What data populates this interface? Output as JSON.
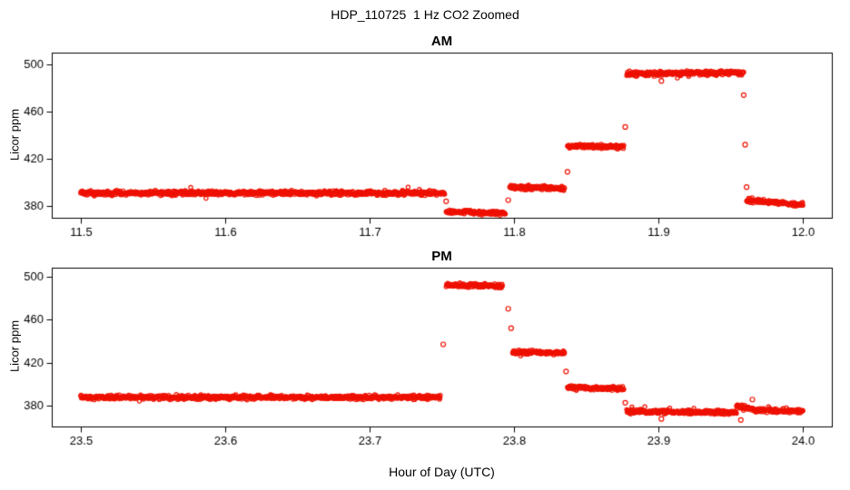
{
  "title": "HDP_110725  1 Hz CO2 Zoomed",
  "xlabel": "Hour of Day (UTC)",
  "point_color": "#ee1100",
  "axis_color": "#000000",
  "chart_data": [
    {
      "type": "scatter",
      "title": "AM",
      "ylabel": "Licor ppm",
      "xlim": [
        11.48,
        12.02
      ],
      "ylim": [
        370,
        510
      ],
      "xticks": [
        11.5,
        11.6,
        11.7,
        11.8,
        11.9,
        12.0
      ],
      "xtick_labels": [
        "11.5",
        "11.6",
        "11.7",
        "11.8",
        "11.9",
        "12.0"
      ],
      "yticks": [
        380,
        420,
        460,
        500
      ],
      "ytick_labels": [
        "380",
        "420",
        "460",
        "500"
      ],
      "sample_rate_hz": 1,
      "segments": [
        {
          "x_start": 11.5,
          "x_end": 11.752,
          "y_start": 391,
          "y_end": 391,
          "noise": 1.3
        },
        {
          "x_start": 11.753,
          "x_end": 11.794,
          "y_start": 375,
          "y_end": 374,
          "noise": 1.2
        },
        {
          "x_start": 11.797,
          "x_end": 11.835,
          "y_start": 396,
          "y_end": 395,
          "noise": 1.2
        },
        {
          "x_start": 11.837,
          "x_end": 11.876,
          "y_start": 431,
          "y_end": 430,
          "noise": 1.2
        },
        {
          "x_start": 11.878,
          "x_end": 11.959,
          "y_start": 492,
          "y_end": 493,
          "noise": 1.3
        },
        {
          "x_start": 11.961,
          "x_end": 12.0,
          "y_start": 385,
          "y_end": 381,
          "noise": 1.2
        }
      ],
      "outliers": [
        [
          11.753,
          384
        ],
        [
          11.796,
          385
        ],
        [
          11.837,
          409
        ],
        [
          11.877,
          447
        ],
        [
          11.902,
          486
        ],
        [
          11.959,
          474
        ],
        [
          11.96,
          432
        ],
        [
          11.961,
          396
        ]
      ]
    },
    {
      "type": "scatter",
      "title": "PM",
      "ylabel": "Licor ppm",
      "xlim": [
        23.48,
        24.02
      ],
      "ylim": [
        361,
        508
      ],
      "xticks": [
        23.5,
        23.6,
        23.7,
        23.8,
        23.9,
        24.0
      ],
      "xtick_labels": [
        "23.5",
        "23.6",
        "23.7",
        "23.8",
        "23.9",
        "24.0"
      ],
      "yticks": [
        380,
        420,
        460,
        500
      ],
      "ytick_labels": [
        "380",
        "420",
        "460",
        "500"
      ],
      "sample_rate_hz": 1,
      "segments": [
        {
          "x_start": 23.5,
          "x_end": 23.749,
          "y_start": 388,
          "y_end": 388,
          "noise": 1.3
        },
        {
          "x_start": 23.753,
          "x_end": 23.792,
          "y_start": 492,
          "y_end": 491,
          "noise": 1.3
        },
        {
          "x_start": 23.799,
          "x_end": 23.835,
          "y_start": 430,
          "y_end": 429,
          "noise": 1.2
        },
        {
          "x_start": 23.837,
          "x_end": 23.876,
          "y_start": 397,
          "y_end": 396,
          "noise": 1.2
        },
        {
          "x_start": 23.878,
          "x_end": 23.954,
          "y_start": 375,
          "y_end": 374,
          "noise": 1.3
        },
        {
          "x_start": 23.954,
          "x_end": 23.966,
          "y_start": 380,
          "y_end": 377,
          "noise": 1.2
        },
        {
          "x_start": 23.966,
          "x_end": 24.0,
          "y_start": 376,
          "y_end": 375,
          "noise": 1.2
        }
      ],
      "outliers": [
        [
          23.751,
          437
        ],
        [
          23.796,
          470
        ],
        [
          23.798,
          452
        ],
        [
          23.836,
          412
        ],
        [
          23.877,
          383
        ],
        [
          23.902,
          368
        ],
        [
          23.957,
          367
        ],
        [
          23.965,
          386
        ]
      ]
    }
  ]
}
